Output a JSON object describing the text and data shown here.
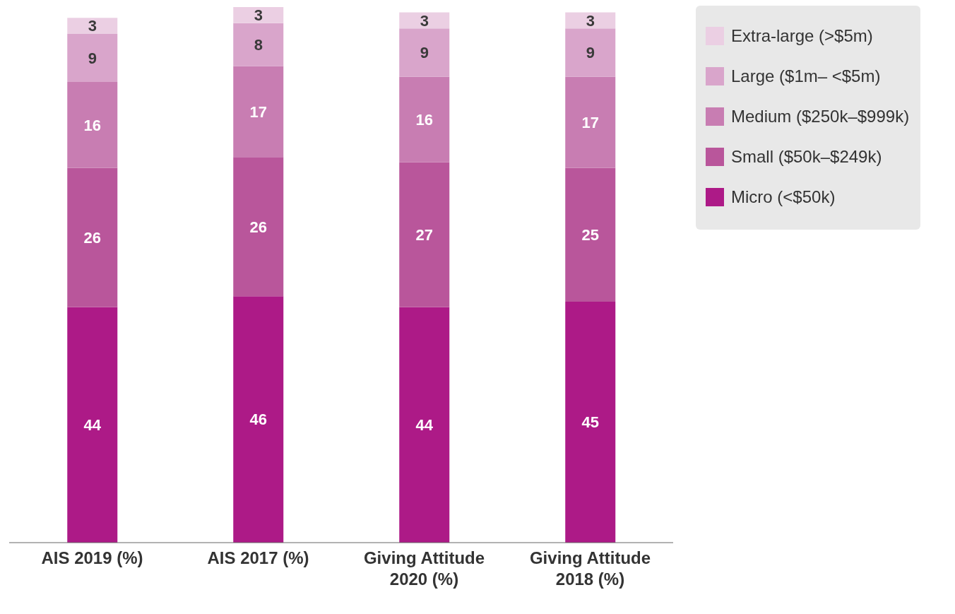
{
  "chart_data": {
    "type": "bar",
    "stacked": true,
    "data_labels": true,
    "legend": "top right",
    "categories": [
      "AIS 2019 (%)",
      "AIS 2017 (%)",
      "Giving Attitude 2020 (%)",
      "Giving Attitude 2018 (%)"
    ],
    "series": [
      {
        "name": "Micro (<$50k)",
        "color": "#ad1a87",
        "values": [
          44,
          46,
          44,
          45
        ]
      },
      {
        "name": "Small ($50k–$249k)",
        "color": "#b9569b",
        "values": [
          26,
          26,
          27,
          25
        ]
      },
      {
        "name": "Medium ($250k–$999k)",
        "color": "#c87db2",
        "values": [
          16,
          17,
          16,
          17
        ]
      },
      {
        "name": "Large ($1m– <$5m)",
        "color": "#d9a5cb",
        "values": [
          9,
          8,
          9,
          9
        ]
      },
      {
        "name": "Extra-large (>$5m)",
        "color": "#ebcfe3",
        "values": [
          3,
          3,
          3,
          3
        ]
      }
    ]
  }
}
